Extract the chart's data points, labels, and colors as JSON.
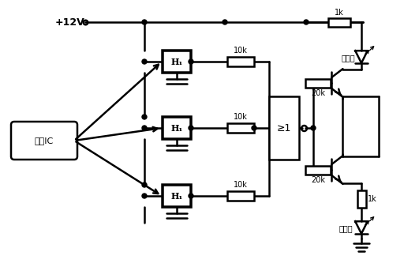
{
  "bg_color": "#ffffff",
  "line_color": "#000000",
  "line_width": 1.8,
  "figsize": [
    5.12,
    3.38
  ],
  "dpi": 100,
  "vcc_label": "+12V",
  "hall_label": "霍尔IC",
  "gate_label": "≥1",
  "r10k": "10k",
  "r1k_top": "1k",
  "r20k_top": "20k",
  "r20k_bot": "20k",
  "r1k_bot": "1k",
  "led_green": "（綠）",
  "led_red": "（红）"
}
